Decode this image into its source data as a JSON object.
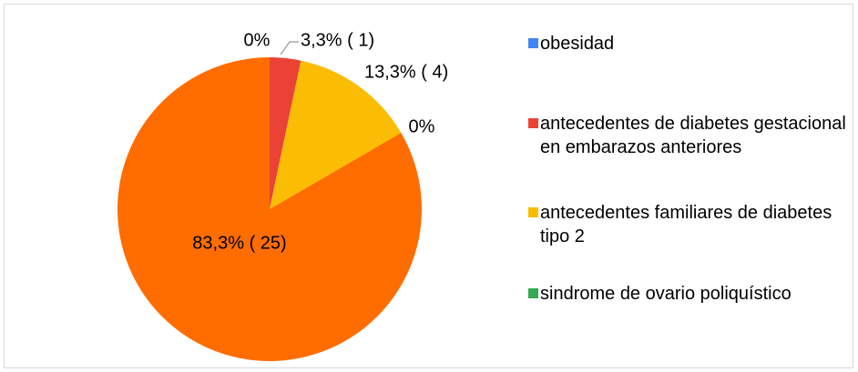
{
  "chart_data": {
    "type": "pie",
    "categories": [
      "obesidad",
      "antecedentes de diabetes gestacional en embarazos anteriores",
      "antecedentes familiares de diabetes tipo 2",
      "sindrome de ovario poliquístico",
      null
    ],
    "values": [
      0,
      3.3,
      13.3,
      0,
      83.3
    ],
    "value_labels": [
      "0%",
      "3,3% ( 1)",
      "13,3% ( 4)",
      "0%",
      "83,3% ( 25)"
    ],
    "colors": [
      "#4285f4",
      "#ea4335",
      "#fbbc04",
      "#34a853",
      "#ff6d01"
    ],
    "legend": "right"
  }
}
